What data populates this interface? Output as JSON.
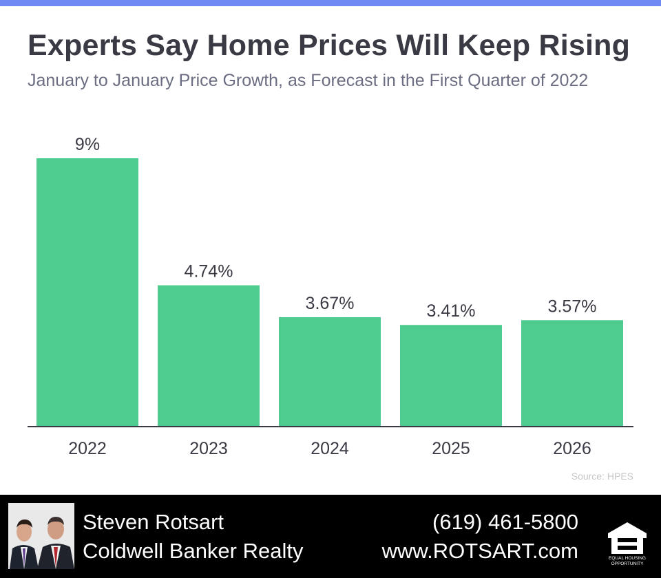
{
  "colors": {
    "top_stripe": "#6f89f2",
    "bar": "#4ecb8f",
    "footer_bg": "#000000",
    "text_dark": "#3a3a45",
    "text_subtle": "#6b6e82"
  },
  "header": {
    "title": "Experts Say Home Prices Will Keep Rising",
    "subtitle": "January to January Price Growth, as Forecast in the First Quarter of 2022"
  },
  "chart_data": {
    "type": "bar",
    "title": "Experts Say Home Prices Will Keep Rising",
    "subtitle": "January to January Price Growth, as Forecast in the First Quarter of 2022",
    "categories": [
      "2022",
      "2023",
      "2024",
      "2025",
      "2026"
    ],
    "values": [
      9,
      4.74,
      3.67,
      3.41,
      3.57
    ],
    "value_labels": [
      "9%",
      "4.74%",
      "3.67%",
      "3.41%",
      "3.57%"
    ],
    "xlabel": "",
    "ylabel": "",
    "ylim": [
      0,
      9
    ],
    "grid": false,
    "legend": "none"
  },
  "source": "Source: HPES",
  "footer": {
    "agent_name": "Steven Rotsart",
    "brokerage": "Coldwell Banker Realty",
    "phone": "(619) 461-5800",
    "website": "www.ROTSART.com",
    "photo_icon": "agent-photo",
    "logo_icon": "equal-housing-opportunity-logo",
    "logo_text_line1": "EQUAL HOUSING",
    "logo_text_line2": "OPPORTUNITY"
  }
}
